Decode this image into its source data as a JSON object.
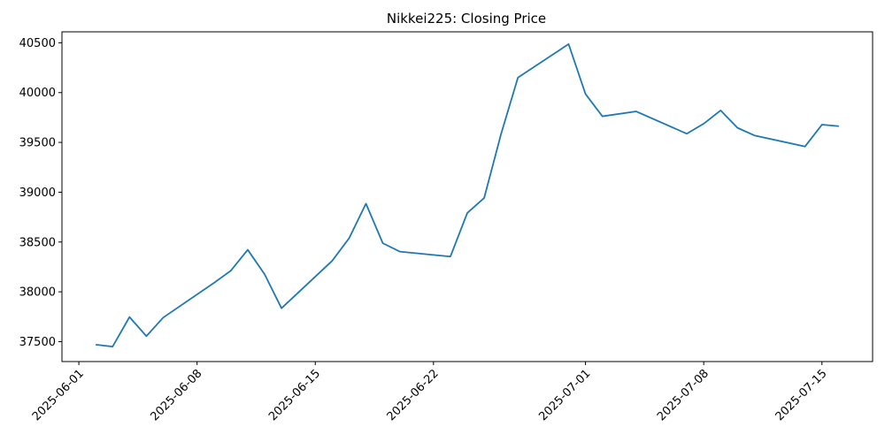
{
  "chart_data": {
    "type": "line",
    "title": "Nikkei225: Closing Price",
    "xlabel": "",
    "ylabel": "",
    "xlim": [
      "2025-05-31",
      "2025-07-18"
    ],
    "ylim": [
      37300,
      40610
    ],
    "grid": false,
    "line_color": "#1f77b4",
    "x_ticks": [
      "2025-06-01",
      "2025-06-08",
      "2025-06-15",
      "2025-06-22",
      "2025-07-01",
      "2025-07-08",
      "2025-07-15"
    ],
    "y_ticks": [
      37500,
      38000,
      38500,
      39000,
      39500,
      40000,
      40500
    ],
    "series": [
      {
        "x": [
          "2025-06-02",
          "2025-06-03",
          "2025-06-04",
          "2025-06-05",
          "2025-06-06",
          "2025-06-09",
          "2025-06-10",
          "2025-06-11",
          "2025-06-12",
          "2025-06-13",
          "2025-06-16",
          "2025-06-17",
          "2025-06-18",
          "2025-06-19",
          "2025-06-20",
          "2025-06-23",
          "2025-06-24",
          "2025-06-25",
          "2025-06-26",
          "2025-06-27",
          "2025-06-30",
          "2025-07-01",
          "2025-07-02",
          "2025-07-04",
          "2025-07-07",
          "2025-07-08",
          "2025-07-09",
          "2025-07-10",
          "2025-07-11",
          "2025-07-14",
          "2025-07-15",
          "2025-07-16"
        ],
        "values": [
          37470,
          37450,
          37747,
          37555,
          37742,
          38090,
          38212,
          38422,
          38176,
          37835,
          38311,
          38537,
          38885,
          38488,
          38404,
          38354,
          38791,
          38942,
          39584,
          40151,
          40487,
          39986,
          39762,
          39811,
          39587,
          39688,
          39821,
          39646,
          39570,
          39459,
          39678,
          39663
        ]
      }
    ]
  }
}
